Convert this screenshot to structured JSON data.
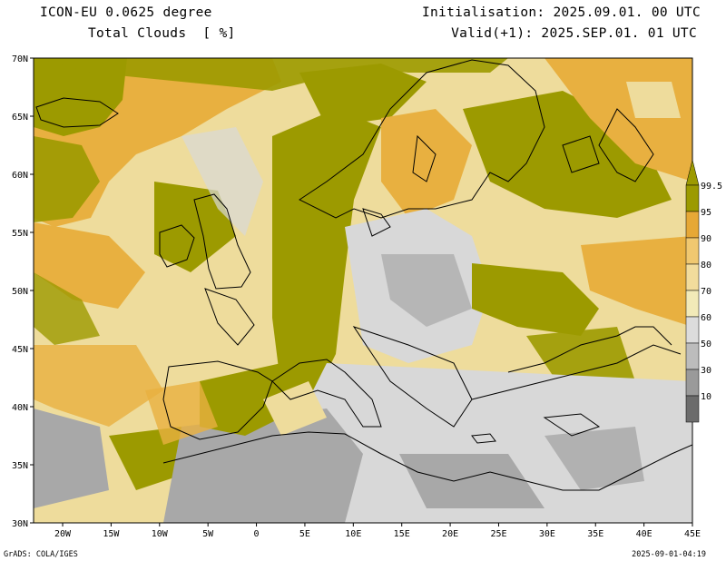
{
  "header": {
    "model": "ICON-EU 0.0625 degree",
    "variable": "Total Clouds  [ %]",
    "initialisation": "Initialisation: 2025.09.01. 00 UTC",
    "valid": "Valid(+1): 2025.SEP.01. 01 UTC"
  },
  "map": {
    "lon_range": [
      -23,
      45
    ],
    "lat_range": [
      30,
      70
    ],
    "lat_labels": [
      "70N",
      "65N",
      "60N",
      "55N",
      "50N",
      "45N",
      "40N",
      "35N",
      "30N"
    ],
    "lat_values": [
      70,
      65,
      60,
      55,
      50,
      45,
      40,
      35,
      30
    ],
    "lon_labels": [
      "20W",
      "15W",
      "10W",
      "5W",
      "0",
      "5E",
      "10E",
      "15E",
      "20E",
      "25E",
      "30E",
      "35E",
      "40E",
      "45E"
    ],
    "lon_values": [
      -20,
      -15,
      -10,
      -5,
      0,
      5,
      10,
      15,
      20,
      25,
      30,
      35,
      40,
      45
    ],
    "colors": {
      "overcast": "#9c9a00",
      "high": "#e8b040",
      "mid": "#eedc9c",
      "low_gray": "#a8a8a8",
      "clear": "#d8d8d8",
      "coast": "#000000"
    }
  },
  "colorbar": {
    "labels": [
      "99.5",
      "95",
      "90",
      "80",
      "70",
      "60",
      "50",
      "30",
      "10"
    ],
    "colors": [
      "#9c9a00",
      "#e6a836",
      "#f0c870",
      "#f2dc9c",
      "#f2eab8",
      "#dcdcdc",
      "#bcbcbc",
      "#9a9a9a",
      "#6c6c6c"
    ]
  },
  "footer": {
    "left": "GrADS: COLA/IGES",
    "right": "2025-09-01-04:19"
  }
}
